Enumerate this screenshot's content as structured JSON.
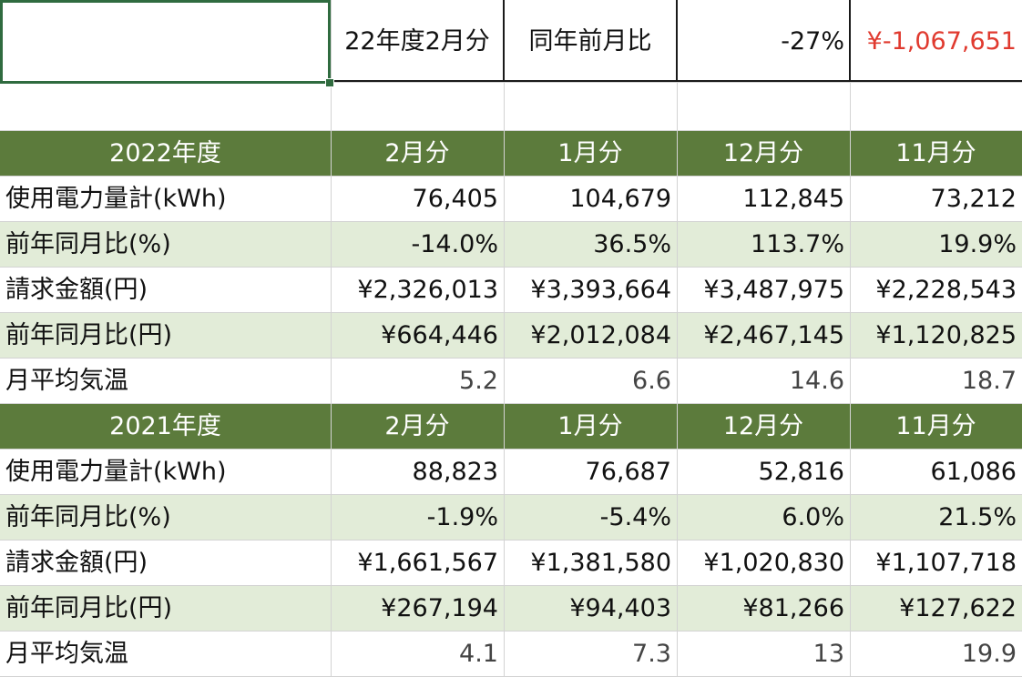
{
  "summary": {
    "period": "22年度2月分",
    "label": "同年前月比",
    "percent": "-27%",
    "amount": "¥-1,067,651",
    "amount_color": "#e03a2f"
  },
  "colors": {
    "header_bg": "#5c7b3c",
    "alt_row_bg": "#e2ecd8",
    "selection": "#2f6b3f"
  },
  "tables": [
    {
      "year": "2022年度",
      "months": [
        "2月分",
        "1月分",
        "12月分",
        "11月分"
      ],
      "rows": [
        {
          "label": "使用電力量計(kWh)",
          "values": [
            "76,405",
            "104,679",
            "112,845",
            "73,212"
          ]
        },
        {
          "label": "前年同月比(%)",
          "values": [
            "-14.0%",
            "36.5%",
            "113.7%",
            "19.9%"
          ]
        },
        {
          "label": "請求金額(円)",
          "values": [
            "¥2,326,013",
            "¥3,393,664",
            "¥3,487,975",
            "¥2,228,543"
          ]
        },
        {
          "label": "前年同月比(円)",
          "values": [
            "¥664,446",
            "¥2,012,084",
            "¥2,467,145",
            "¥1,120,825"
          ]
        },
        {
          "label": "月平均気温",
          "values": [
            "5.2",
            "6.6",
            "14.6",
            "18.7"
          ]
        }
      ]
    },
    {
      "year": "2021年度",
      "months": [
        "2月分",
        "1月分",
        "12月分",
        "11月分"
      ],
      "rows": [
        {
          "label": "使用電力量計(kWh)",
          "values": [
            "88,823",
            "76,687",
            "52,816",
            "61,086"
          ]
        },
        {
          "label": "前年同月比(%)",
          "values": [
            "-1.9%",
            "-5.4%",
            "6.0%",
            "21.5%"
          ]
        },
        {
          "label": "請求金額(円)",
          "values": [
            "¥1,661,567",
            "¥1,381,580",
            "¥1,020,830",
            "¥1,107,718"
          ]
        },
        {
          "label": "前年同月比(円)",
          "values": [
            "¥267,194",
            "¥94,403",
            "¥81,266",
            "¥127,622"
          ]
        },
        {
          "label": "月平均気温",
          "values": [
            "4.1",
            "7.3",
            "13",
            "19.9"
          ]
        }
      ]
    }
  ]
}
